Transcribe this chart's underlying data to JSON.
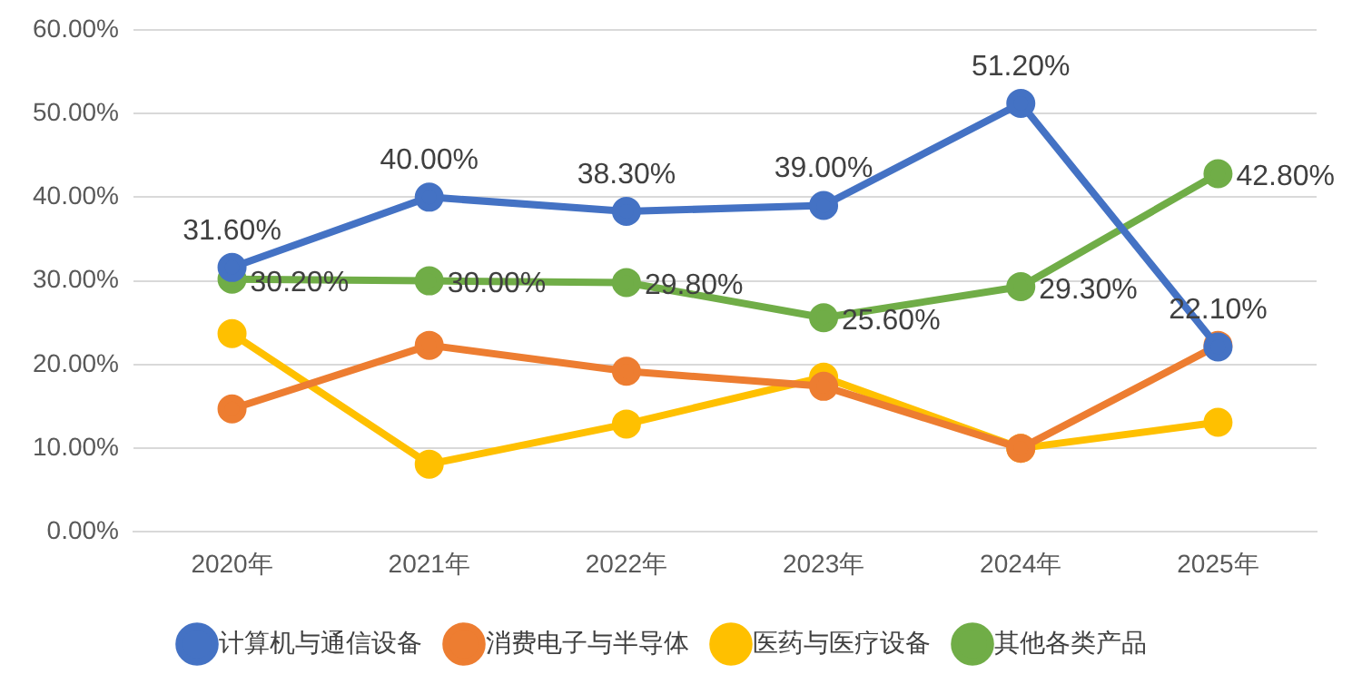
{
  "chart_data": {
    "type": "line",
    "categories": [
      "2020年",
      "2021年",
      "2022年",
      "2023年",
      "2024年",
      "2025年"
    ],
    "series": [
      {
        "name": "计算机与通信设备",
        "color": "#4472c4",
        "values": [
          31.6,
          40.0,
          38.3,
          39.0,
          51.2,
          22.1
        ],
        "value_labels": [
          "31.60%",
          "40.00%",
          "38.30%",
          "39.00%",
          "51.20%",
          "22.10%"
        ]
      },
      {
        "name": "消费电子与半导体",
        "color": "#ed7d31",
        "values": [
          14.7,
          22.3,
          19.2,
          17.4,
          10.0,
          22.3
        ]
      },
      {
        "name": "医药与医疗设备",
        "color": "#ffc000",
        "values": [
          23.7,
          8.1,
          12.9,
          18.5,
          10.0,
          13.1
        ]
      },
      {
        "name": "其他各类产品",
        "color": "#70ad47",
        "values": [
          30.2,
          30.0,
          29.8,
          25.6,
          29.3,
          42.8
        ],
        "value_labels": [
          "30.20%",
          "30.00%",
          "29.80%",
          "25.60%",
          "29.30%",
          "42.80%"
        ]
      }
    ],
    "ylim": [
      0,
      60
    ],
    "yticks": [
      {
        "value": 0,
        "label": "0.00%"
      },
      {
        "value": 10,
        "label": "10.00%"
      },
      {
        "value": 20,
        "label": "20.00%"
      },
      {
        "value": 30,
        "label": "30.00%"
      },
      {
        "value": 40,
        "label": "40.00%"
      },
      {
        "value": 50,
        "label": "50.00%"
      },
      {
        "value": 60,
        "label": "60.00%"
      }
    ],
    "grid": "y",
    "legend": "bottom",
    "marker": "circle",
    "line_style": "solid"
  }
}
